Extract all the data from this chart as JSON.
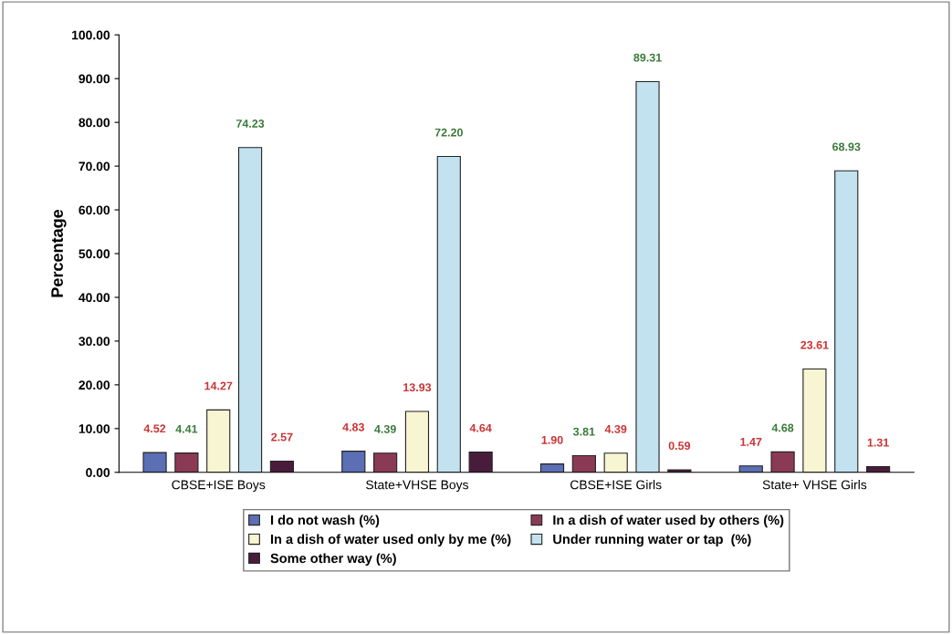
{
  "chart_data": {
    "type": "bar",
    "ylabel": "Percentage",
    "categories": [
      "CBSE+ISE Boys",
      "State+VHSE Boys",
      "CBSE+ISE Girls",
      "State+ VHSE Girls"
    ],
    "series": [
      {
        "name": "I do not wash (%)",
        "color": "#5b6fb5",
        "values": [
          4.52,
          4.83,
          1.9,
          1.47
        ],
        "value_labels": [
          "4.52",
          "4.83",
          "1.90",
          "1.47"
        ]
      },
      {
        "name": "In a dish of water used by others (%)",
        "color": "#8b3a55",
        "values": [
          4.41,
          4.39,
          3.81,
          4.68
        ],
        "value_labels": [
          "4.41",
          "4.39",
          "3.81",
          "4.68"
        ]
      },
      {
        "name": "In a dish of water used only by me (%)",
        "color": "#f7f5d2",
        "values": [
          14.27,
          13.93,
          4.39,
          23.61
        ],
        "value_labels": [
          "14.27",
          "13.93",
          "4.39",
          "23.61"
        ]
      },
      {
        "name": "Under running water or tap  (%)",
        "color": "#c2e2ef",
        "values": [
          74.23,
          72.2,
          89.31,
          68.93
        ],
        "value_labels": [
          "74.23",
          "72.20",
          "89.31",
          "68.93"
        ]
      },
      {
        "name": "Some other way (%)",
        "color": "#4a1c3c",
        "values": [
          2.57,
          4.64,
          0.59,
          1.31
        ],
        "value_labels": [
          "2.57",
          "4.64",
          "0.59",
          "1.31"
        ]
      }
    ],
    "ylim": [
      0,
      100
    ],
    "yticks": [
      {
        "value": 0,
        "label": "0.00"
      },
      {
        "value": 10,
        "label": "10.00"
      },
      {
        "value": 20,
        "label": "20.00"
      },
      {
        "value": 30,
        "label": "30.00"
      },
      {
        "value": 40,
        "label": "40.00"
      },
      {
        "value": 50,
        "label": "50.00"
      },
      {
        "value": 60,
        "label": "60.00"
      },
      {
        "value": 70,
        "label": "70.00"
      },
      {
        "value": 80,
        "label": "80.00"
      },
      {
        "value": 90,
        "label": "90.00"
      },
      {
        "value": 100,
        "label": "100.00"
      }
    ],
    "legend": "bottom",
    "grid": false
  }
}
